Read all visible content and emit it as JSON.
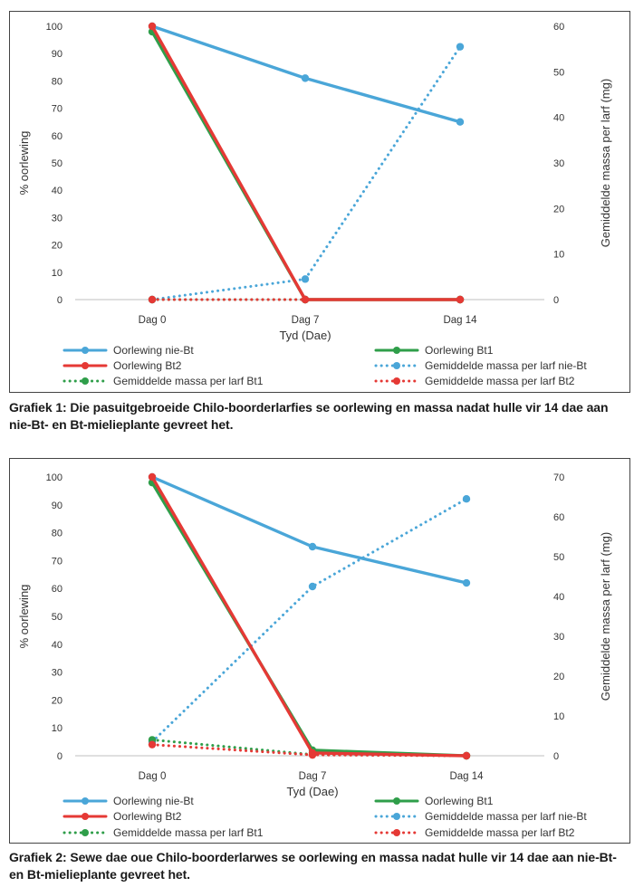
{
  "colors": {
    "nie_bt": "#4aa6d8",
    "bt1": "#2f9e4a",
    "bt2": "#e53935"
  },
  "captions": {
    "grafiek1": "Grafiek 1: Die pasuitgebroeide Chilo-boorderlarfies se oorlewing en massa nadat hulle vir 14 dae aan nie-Bt- en Bt-mielieplante gevreet het.",
    "grafiek2": "Grafiek 2: Sewe dae oue Chilo-boorderlarwes se oorlewing en massa nadat hulle vir 14 dae aan nie-Bt- en Bt-mielieplante gevreet het."
  },
  "chart_data": [
    {
      "type": "line",
      "categories": [
        "Dag 0",
        "Dag 7",
        "Dag 14"
      ],
      "xlabel": "Tyd (Dae)",
      "ylabel": "% oorlewing",
      "y2label": "Gemiddelde massa per larf (mg)",
      "ylim": [
        0,
        100
      ],
      "yticks": [
        0,
        10,
        20,
        30,
        40,
        50,
        60,
        70,
        80,
        90,
        100
      ],
      "y2lim": [
        0,
        60
      ],
      "y2ticks": [
        0,
        10,
        20,
        30,
        40,
        50,
        60
      ],
      "grid": false,
      "legend_position": "bottom",
      "series": [
        {
          "name": "Oorlewing nie-Bt",
          "axis": "left",
          "style": "solid",
          "color": "#4aa6d8",
          "values": [
            100,
            81,
            65
          ]
        },
        {
          "name": "Oorlewing Bt1",
          "axis": "left",
          "style": "solid",
          "color": "#2f9e4a",
          "values": [
            98,
            0,
            0
          ]
        },
        {
          "name": "Oorlewing Bt2",
          "axis": "left",
          "style": "solid",
          "color": "#e53935",
          "values": [
            100,
            0,
            0
          ]
        },
        {
          "name": "Gemiddelde massa per larf nie-Bt",
          "axis": "right",
          "style": "dotted",
          "color": "#4aa6d8",
          "values": [
            0,
            4.5,
            55.5
          ]
        },
        {
          "name": "Gemiddelde massa per larf Bt1",
          "axis": "right",
          "style": "dotted",
          "color": "#2f9e4a",
          "values": [
            0,
            0,
            0
          ]
        },
        {
          "name": "Gemiddelde massa per larf Bt2",
          "axis": "right",
          "style": "dotted",
          "color": "#e53935",
          "values": [
            0,
            0,
            0
          ]
        }
      ]
    },
    {
      "type": "line",
      "categories": [
        "Dag 0",
        "Dag 7",
        "Dag 14"
      ],
      "xlabel": "Tyd (Dae)",
      "ylabel": "% oorlewing",
      "y2label": "Gemiddelde massa per larf (mg)",
      "ylim": [
        0,
        100
      ],
      "yticks": [
        0,
        10,
        20,
        30,
        40,
        50,
        60,
        70,
        80,
        90,
        100
      ],
      "y2lim": [
        0,
        70
      ],
      "y2ticks": [
        0,
        10,
        20,
        30,
        40,
        50,
        60,
        70
      ],
      "grid": false,
      "legend_position": "bottom",
      "series": [
        {
          "name": "Oorlewing nie-Bt",
          "axis": "left",
          "style": "solid",
          "color": "#4aa6d8",
          "values": [
            100,
            75,
            62
          ]
        },
        {
          "name": "Oorlewing Bt1",
          "axis": "left",
          "style": "solid",
          "color": "#2f9e4a",
          "values": [
            98,
            2,
            0
          ]
        },
        {
          "name": "Oorlewing Bt2",
          "axis": "left",
          "style": "solid",
          "color": "#e53935",
          "values": [
            100,
            1,
            0
          ]
        },
        {
          "name": "Gemiddelde massa per larf nie-Bt",
          "axis": "right",
          "style": "dotted",
          "color": "#4aa6d8",
          "values": [
            3.5,
            42.5,
            64.5
          ]
        },
        {
          "name": "Gemiddelde massa per larf Bt1",
          "axis": "right",
          "style": "dotted",
          "color": "#2f9e4a",
          "values": [
            4,
            0.3,
            0
          ]
        },
        {
          "name": "Gemiddelde massa per larf Bt2",
          "axis": "right",
          "style": "dotted",
          "color": "#e53935",
          "values": [
            2.8,
            0.2,
            0
          ]
        }
      ]
    }
  ]
}
